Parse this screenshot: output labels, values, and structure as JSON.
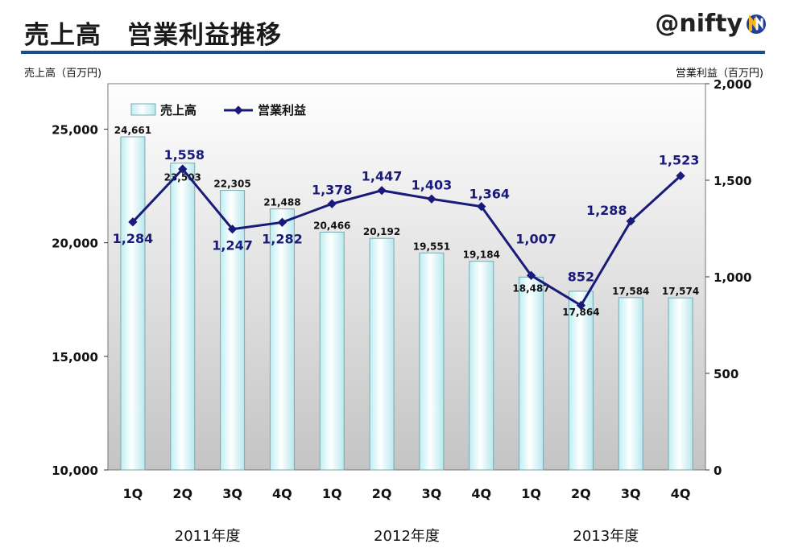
{
  "header": {
    "title": "売上高　営業利益推移",
    "brand": "@nifty"
  },
  "chart_data": {
    "type": "bar",
    "categories": [
      "1Q",
      "2Q",
      "3Q",
      "4Q",
      "1Q",
      "2Q",
      "3Q",
      "4Q",
      "1Q",
      "2Q",
      "3Q",
      "4Q"
    ],
    "groups": [
      {
        "label": "2011年度",
        "count": 4
      },
      {
        "label": "2012年度",
        "count": 4
      },
      {
        "label": "2013年度",
        "count": 4
      }
    ],
    "left_axis": {
      "label": "売上高（百万円)",
      "ylim": [
        10000,
        27000
      ],
      "ticks": [
        "10,000",
        "15,000",
        "20,000",
        "25,000"
      ],
      "tick_values": [
        10000,
        15000,
        20000,
        25000
      ]
    },
    "right_axis": {
      "label": "営業利益（百万円)",
      "ylim": [
        0,
        2000
      ],
      "ticks": [
        "0",
        "500",
        "1,000",
        "1,500",
        "2,000"
      ],
      "tick_values": [
        0,
        500,
        1000,
        1500,
        2000
      ]
    },
    "series": [
      {
        "name": "売上高",
        "kind": "bar",
        "axis": "left",
        "values": [
          24661,
          23503,
          22305,
          21488,
          20466,
          20192,
          19551,
          19184,
          18487,
          17864,
          17584,
          17574
        ],
        "labels": [
          "24,661",
          "23,503",
          "22,305",
          "21,488",
          "20,466",
          "20,192",
          "19,551",
          "19,184",
          "18,487",
          "17,864",
          "17,584",
          "17,574"
        ],
        "color": "#e8fbfc"
      },
      {
        "name": "営業利益",
        "kind": "line",
        "axis": "right",
        "values": [
          1284,
          1558,
          1247,
          1282,
          1378,
          1447,
          1403,
          1364,
          1007,
          852,
          1288,
          1523
        ],
        "labels": [
          "1,284",
          "1,558",
          "1,247",
          "1,282",
          "1,378",
          "1,447",
          "1,403",
          "1,364",
          "1,007",
          "852",
          "1,288",
          "1,523"
        ],
        "color": "#1a1a7a"
      }
    ],
    "legend_position": "top-left",
    "grid": false
  }
}
